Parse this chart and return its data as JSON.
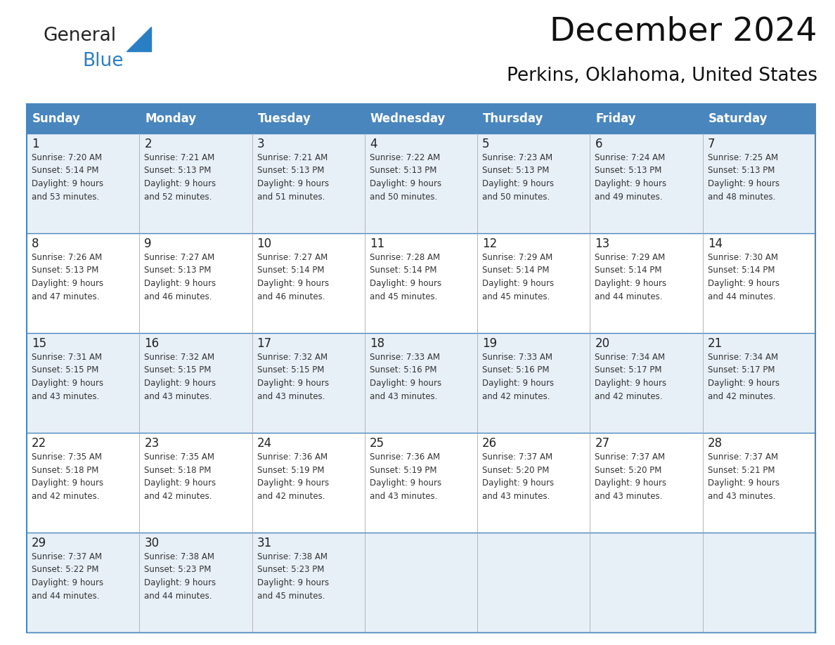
{
  "title": "December 2024",
  "subtitle": "Perkins, Oklahoma, United States",
  "header_color": "#4a86be",
  "header_text_color": "#ffffff",
  "cell_bg_even": "#e8f0f7",
  "cell_bg_odd": "#ffffff",
  "border_color": "#4a86be",
  "cell_line_color": "#aaaaaa",
  "days_of_week": [
    "Sunday",
    "Monday",
    "Tuesday",
    "Wednesday",
    "Thursday",
    "Friday",
    "Saturday"
  ],
  "weeks": [
    [
      {
        "day": 1,
        "sunrise": "7:20 AM",
        "sunset": "5:14 PM",
        "daylight": "9 hours\nand 53 minutes."
      },
      {
        "day": 2,
        "sunrise": "7:21 AM",
        "sunset": "5:13 PM",
        "daylight": "9 hours\nand 52 minutes."
      },
      {
        "day": 3,
        "sunrise": "7:21 AM",
        "sunset": "5:13 PM",
        "daylight": "9 hours\nand 51 minutes."
      },
      {
        "day": 4,
        "sunrise": "7:22 AM",
        "sunset": "5:13 PM",
        "daylight": "9 hours\nand 50 minutes."
      },
      {
        "day": 5,
        "sunrise": "7:23 AM",
        "sunset": "5:13 PM",
        "daylight": "9 hours\nand 50 minutes."
      },
      {
        "day": 6,
        "sunrise": "7:24 AM",
        "sunset": "5:13 PM",
        "daylight": "9 hours\nand 49 minutes."
      },
      {
        "day": 7,
        "sunrise": "7:25 AM",
        "sunset": "5:13 PM",
        "daylight": "9 hours\nand 48 minutes."
      }
    ],
    [
      {
        "day": 8,
        "sunrise": "7:26 AM",
        "sunset": "5:13 PM",
        "daylight": "9 hours\nand 47 minutes."
      },
      {
        "day": 9,
        "sunrise": "7:27 AM",
        "sunset": "5:13 PM",
        "daylight": "9 hours\nand 46 minutes."
      },
      {
        "day": 10,
        "sunrise": "7:27 AM",
        "sunset": "5:14 PM",
        "daylight": "9 hours\nand 46 minutes."
      },
      {
        "day": 11,
        "sunrise": "7:28 AM",
        "sunset": "5:14 PM",
        "daylight": "9 hours\nand 45 minutes."
      },
      {
        "day": 12,
        "sunrise": "7:29 AM",
        "sunset": "5:14 PM",
        "daylight": "9 hours\nand 45 minutes."
      },
      {
        "day": 13,
        "sunrise": "7:29 AM",
        "sunset": "5:14 PM",
        "daylight": "9 hours\nand 44 minutes."
      },
      {
        "day": 14,
        "sunrise": "7:30 AM",
        "sunset": "5:14 PM",
        "daylight": "9 hours\nand 44 minutes."
      }
    ],
    [
      {
        "day": 15,
        "sunrise": "7:31 AM",
        "sunset": "5:15 PM",
        "daylight": "9 hours\nand 43 minutes."
      },
      {
        "day": 16,
        "sunrise": "7:32 AM",
        "sunset": "5:15 PM",
        "daylight": "9 hours\nand 43 minutes."
      },
      {
        "day": 17,
        "sunrise": "7:32 AM",
        "sunset": "5:15 PM",
        "daylight": "9 hours\nand 43 minutes."
      },
      {
        "day": 18,
        "sunrise": "7:33 AM",
        "sunset": "5:16 PM",
        "daylight": "9 hours\nand 43 minutes."
      },
      {
        "day": 19,
        "sunrise": "7:33 AM",
        "sunset": "5:16 PM",
        "daylight": "9 hours\nand 42 minutes."
      },
      {
        "day": 20,
        "sunrise": "7:34 AM",
        "sunset": "5:17 PM",
        "daylight": "9 hours\nand 42 minutes."
      },
      {
        "day": 21,
        "sunrise": "7:34 AM",
        "sunset": "5:17 PM",
        "daylight": "9 hours\nand 42 minutes."
      }
    ],
    [
      {
        "day": 22,
        "sunrise": "7:35 AM",
        "sunset": "5:18 PM",
        "daylight": "9 hours\nand 42 minutes."
      },
      {
        "day": 23,
        "sunrise": "7:35 AM",
        "sunset": "5:18 PM",
        "daylight": "9 hours\nand 42 minutes."
      },
      {
        "day": 24,
        "sunrise": "7:36 AM",
        "sunset": "5:19 PM",
        "daylight": "9 hours\nand 42 minutes."
      },
      {
        "day": 25,
        "sunrise": "7:36 AM",
        "sunset": "5:19 PM",
        "daylight": "9 hours\nand 43 minutes."
      },
      {
        "day": 26,
        "sunrise": "7:37 AM",
        "sunset": "5:20 PM",
        "daylight": "9 hours\nand 43 minutes."
      },
      {
        "day": 27,
        "sunrise": "7:37 AM",
        "sunset": "5:20 PM",
        "daylight": "9 hours\nand 43 minutes."
      },
      {
        "day": 28,
        "sunrise": "7:37 AM",
        "sunset": "5:21 PM",
        "daylight": "9 hours\nand 43 minutes."
      }
    ],
    [
      {
        "day": 29,
        "sunrise": "7:37 AM",
        "sunset": "5:22 PM",
        "daylight": "9 hours\nand 44 minutes."
      },
      {
        "day": 30,
        "sunrise": "7:38 AM",
        "sunset": "5:23 PM",
        "daylight": "9 hours\nand 44 minutes."
      },
      {
        "day": 31,
        "sunrise": "7:38 AM",
        "sunset": "5:23 PM",
        "daylight": "9 hours\nand 45 minutes."
      },
      null,
      null,
      null,
      null
    ]
  ],
  "logo_text1": "General",
  "logo_text2": "Blue",
  "logo_color1": "#222222",
  "logo_color2": "#2a7fc4",
  "title_fontsize": 34,
  "subtitle_fontsize": 19,
  "header_fontsize": 12,
  "day_num_fontsize": 12,
  "cell_text_fontsize": 8.5
}
